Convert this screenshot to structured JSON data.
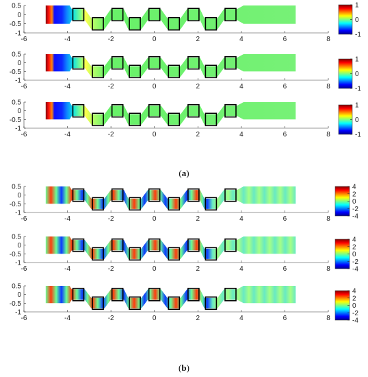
{
  "figure": {
    "captions": [
      {
        "prefix": "(",
        "letter": "a",
        "suffix": ")"
      },
      {
        "prefix": "(",
        "letter": "b",
        "suffix": ")"
      }
    ]
  },
  "colors": {
    "colormap": [
      "#00008f",
      "#0000ff",
      "#0080ff",
      "#00ffff",
      "#80ff80",
      "#ffff00",
      "#ff8000",
      "#ff0000",
      "#800000"
    ],
    "marker": "#000000",
    "axis": "#333333",
    "background": "#ffffff"
  },
  "chart_data": [
    {
      "type": "heatmap",
      "group": "a",
      "panel": 1,
      "xlim": [
        -6,
        8
      ],
      "ylim": [
        -1,
        0.5
      ],
      "xticks": [
        -6,
        -4,
        -2,
        0,
        2,
        4,
        6,
        8
      ],
      "yticks": [
        0.5,
        0,
        -0.5,
        -1
      ],
      "colorbar": {
        "range": [
          -1,
          1
        ],
        "ticks": [
          1,
          0,
          -1
        ]
      },
      "markers_x": [
        -3.5,
        -2.6,
        -1.7,
        -0.9,
        0,
        0.9,
        1.8,
        2.6,
        3.5
      ],
      "markers_y": [
        0,
        -0.5,
        0,
        -0.5,
        0,
        -0.5,
        0,
        -0.5,
        0
      ],
      "field": "static"
    },
    {
      "type": "heatmap",
      "group": "a",
      "panel": 2,
      "xlim": [
        -6,
        8
      ],
      "ylim": [
        -1,
        0.5
      ],
      "xticks": [
        -6,
        -4,
        -2,
        0,
        2,
        4,
        6,
        8
      ],
      "yticks": [
        0.5,
        0,
        -0.5,
        -1
      ],
      "colorbar": {
        "range": [
          -1,
          1
        ],
        "ticks": [
          1,
          0,
          -1
        ]
      },
      "markers_x": [
        -3.5,
        -2.6,
        -1.7,
        -0.9,
        0,
        0.9,
        1.8,
        2.6,
        3.5
      ],
      "markers_y": [
        0,
        -0.5,
        0,
        -0.5,
        0,
        -0.5,
        0,
        -0.5,
        0
      ],
      "field": "static"
    },
    {
      "type": "heatmap",
      "group": "a",
      "panel": 3,
      "xlim": [
        -6,
        8
      ],
      "ylim": [
        -1,
        0.5
      ],
      "xticks": [
        -6,
        -4,
        -2,
        0,
        2,
        4,
        6,
        8
      ],
      "yticks": [
        0.5,
        0,
        -0.5,
        -1
      ],
      "colorbar": {
        "range": [
          -1,
          1
        ],
        "ticks": [
          1,
          0,
          -1
        ]
      },
      "markers_x": [
        -3.5,
        -2.6,
        -1.7,
        -0.9,
        0,
        0.9,
        1.8,
        2.6,
        3.5
      ],
      "markers_y": [
        0,
        -0.5,
        0,
        -0.5,
        0,
        -0.5,
        0,
        -0.5,
        0
      ],
      "field": "static"
    },
    {
      "type": "heatmap",
      "group": "b",
      "panel": 1,
      "xlim": [
        -6,
        8
      ],
      "ylim": [
        -1,
        0.5
      ],
      "xticks": [
        -6,
        -4,
        -2,
        0,
        2,
        4,
        6,
        8
      ],
      "yticks": [
        0.5,
        0,
        -0.5,
        -1
      ],
      "colorbar": {
        "range": [
          -4,
          4
        ],
        "ticks": [
          4,
          2,
          0,
          -2,
          -4
        ]
      },
      "markers_x": [
        -3.5,
        -2.6,
        -1.7,
        -0.9,
        0,
        0.9,
        1.8,
        2.6,
        3.5
      ],
      "markers_y": [
        0,
        -0.5,
        0,
        -0.5,
        0,
        -0.5,
        0,
        -0.5,
        0
      ],
      "field": "wave"
    },
    {
      "type": "heatmap",
      "group": "b",
      "panel": 2,
      "xlim": [
        -6,
        8
      ],
      "ylim": [
        -1,
        0.5
      ],
      "xticks": [
        -6,
        -4,
        -2,
        0,
        2,
        4,
        6,
        8
      ],
      "yticks": [
        0.5,
        0,
        -0.5,
        -1
      ],
      "colorbar": {
        "range": [
          -4,
          4
        ],
        "ticks": [
          4,
          2,
          0,
          -2,
          -4
        ]
      },
      "markers_x": [
        -3.5,
        -2.6,
        -1.7,
        -0.9,
        0,
        0.9,
        1.8,
        2.6,
        3.5
      ],
      "markers_y": [
        0,
        -0.5,
        0,
        -0.5,
        0,
        -0.5,
        0,
        -0.5,
        0
      ],
      "field": "wave"
    },
    {
      "type": "heatmap",
      "group": "b",
      "panel": 3,
      "xlim": [
        -6,
        8
      ],
      "ylim": [
        -1,
        0.5
      ],
      "xticks": [
        -6,
        -4,
        -2,
        0,
        2,
        4,
        6,
        8
      ],
      "yticks": [
        0.5,
        0,
        -0.5,
        -1
      ],
      "colorbar": {
        "range": [
          -4,
          4
        ],
        "ticks": [
          4,
          2,
          0,
          -2,
          -4
        ]
      },
      "markers_x": [
        -3.5,
        -2.6,
        -1.7,
        -0.9,
        0,
        0.9,
        1.8,
        2.6,
        3.5
      ],
      "markers_y": [
        0,
        -0.5,
        0,
        -0.5,
        0,
        -0.5,
        0,
        -0.5,
        0
      ],
      "field": "wave"
    }
  ]
}
